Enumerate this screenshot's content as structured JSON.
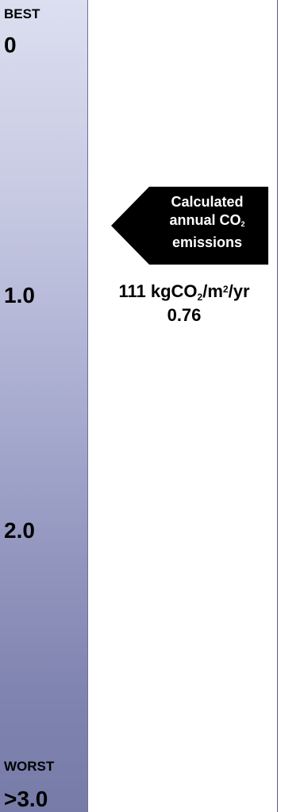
{
  "scale": {
    "best_label": "BEST",
    "top_value": "0",
    "mark_1": "1.0",
    "mark_2": "2.0",
    "worst_label": "WORST",
    "bottom_value": ">3.0"
  },
  "pointer": {
    "line1": "Calculated",
    "line2_prefix": "annual CO",
    "line2_sub": "2",
    "line3": "emissions"
  },
  "result": {
    "value_prefix": "111 kgCO",
    "value_sub": "2",
    "value_mid": "/m",
    "value_sup": "2",
    "value_suffix": "/yr",
    "rating": "0.76"
  },
  "colors": {
    "pointer_fill": "#000000",
    "scale_top": "#dcdff0",
    "scale_bottom": "#777ba8"
  }
}
